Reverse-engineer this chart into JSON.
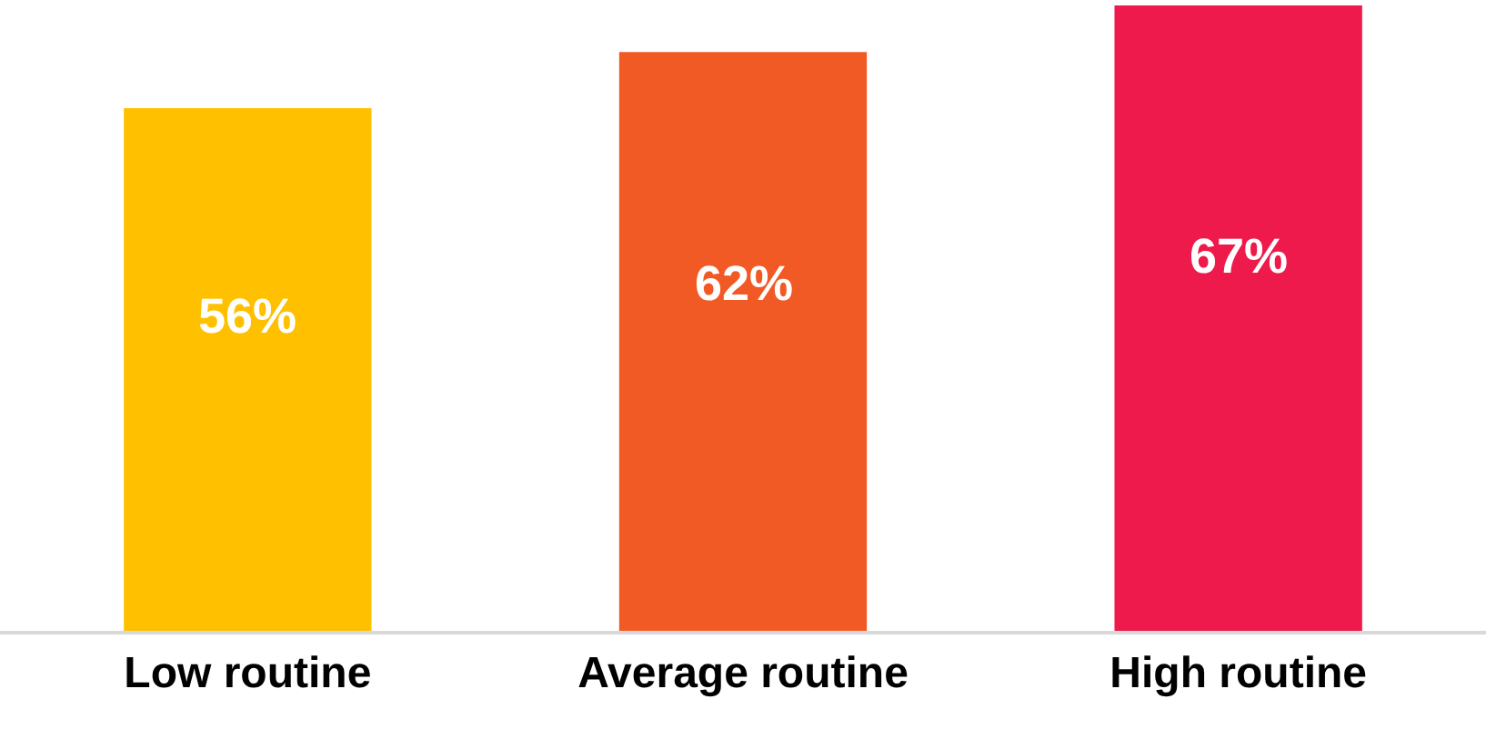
{
  "chart_data": {
    "type": "bar",
    "categories": [
      "Low routine",
      "Average routine",
      "High routine"
    ],
    "values": [
      56,
      62,
      67
    ],
    "colors": [
      "#ffc000",
      "#f15a24",
      "#ed1a4b"
    ],
    "value_labels": [
      "56%",
      "62%",
      "67%"
    ],
    "tick_labels": "x",
    "legend": false
  }
}
